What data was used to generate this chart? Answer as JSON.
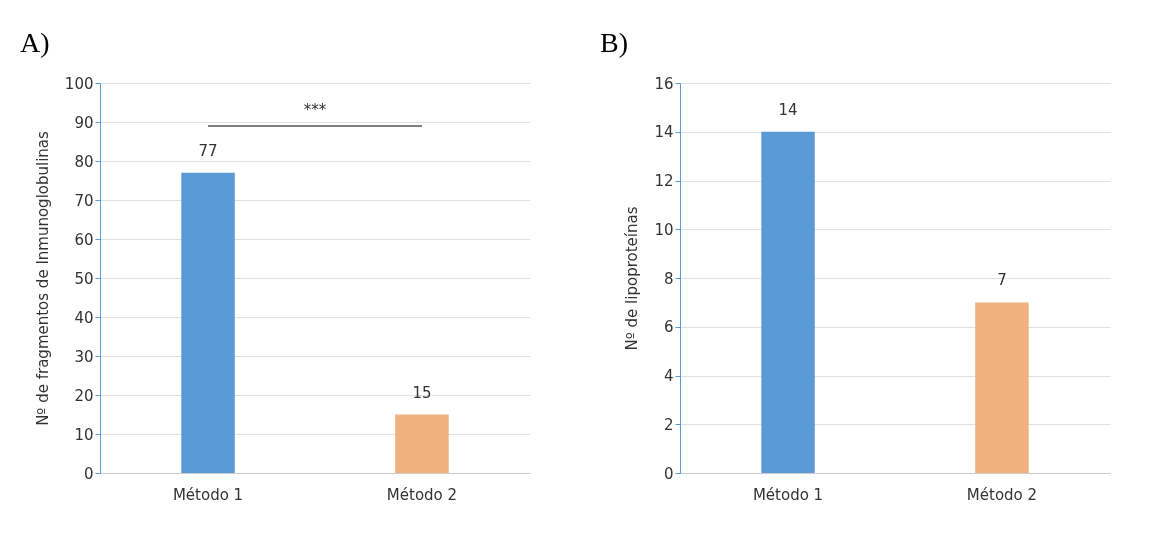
{
  "chart_data": [
    {
      "type": "bar",
      "title": "A)",
      "ylabel": "Nº de fragmentos de Inmunoglobulinas",
      "categories": [
        "Método 1",
        "Método 2"
      ],
      "values": [
        77,
        15
      ],
      "colors": [
        "#5b9bd5",
        "#f0b07f"
      ],
      "ylim": [
        0,
        100
      ],
      "yticks": [
        0,
        10,
        20,
        30,
        40,
        50,
        60,
        70,
        80,
        90,
        100
      ],
      "grid": "y",
      "data_labels": true,
      "annotations": [
        "***"
      ]
    },
    {
      "type": "bar",
      "title": "B)",
      "ylabel": "Nº de lipoproteínas",
      "categories": [
        "Método 1",
        "Método 2"
      ],
      "values": [
        14,
        7
      ],
      "colors": [
        "#5b9bd5",
        "#f0b07f"
      ],
      "ylim": [
        0,
        16
      ],
      "yticks": [
        0,
        2,
        4,
        6,
        8,
        10,
        12,
        14,
        16
      ],
      "grid": "y",
      "data_labels": true
    }
  ]
}
